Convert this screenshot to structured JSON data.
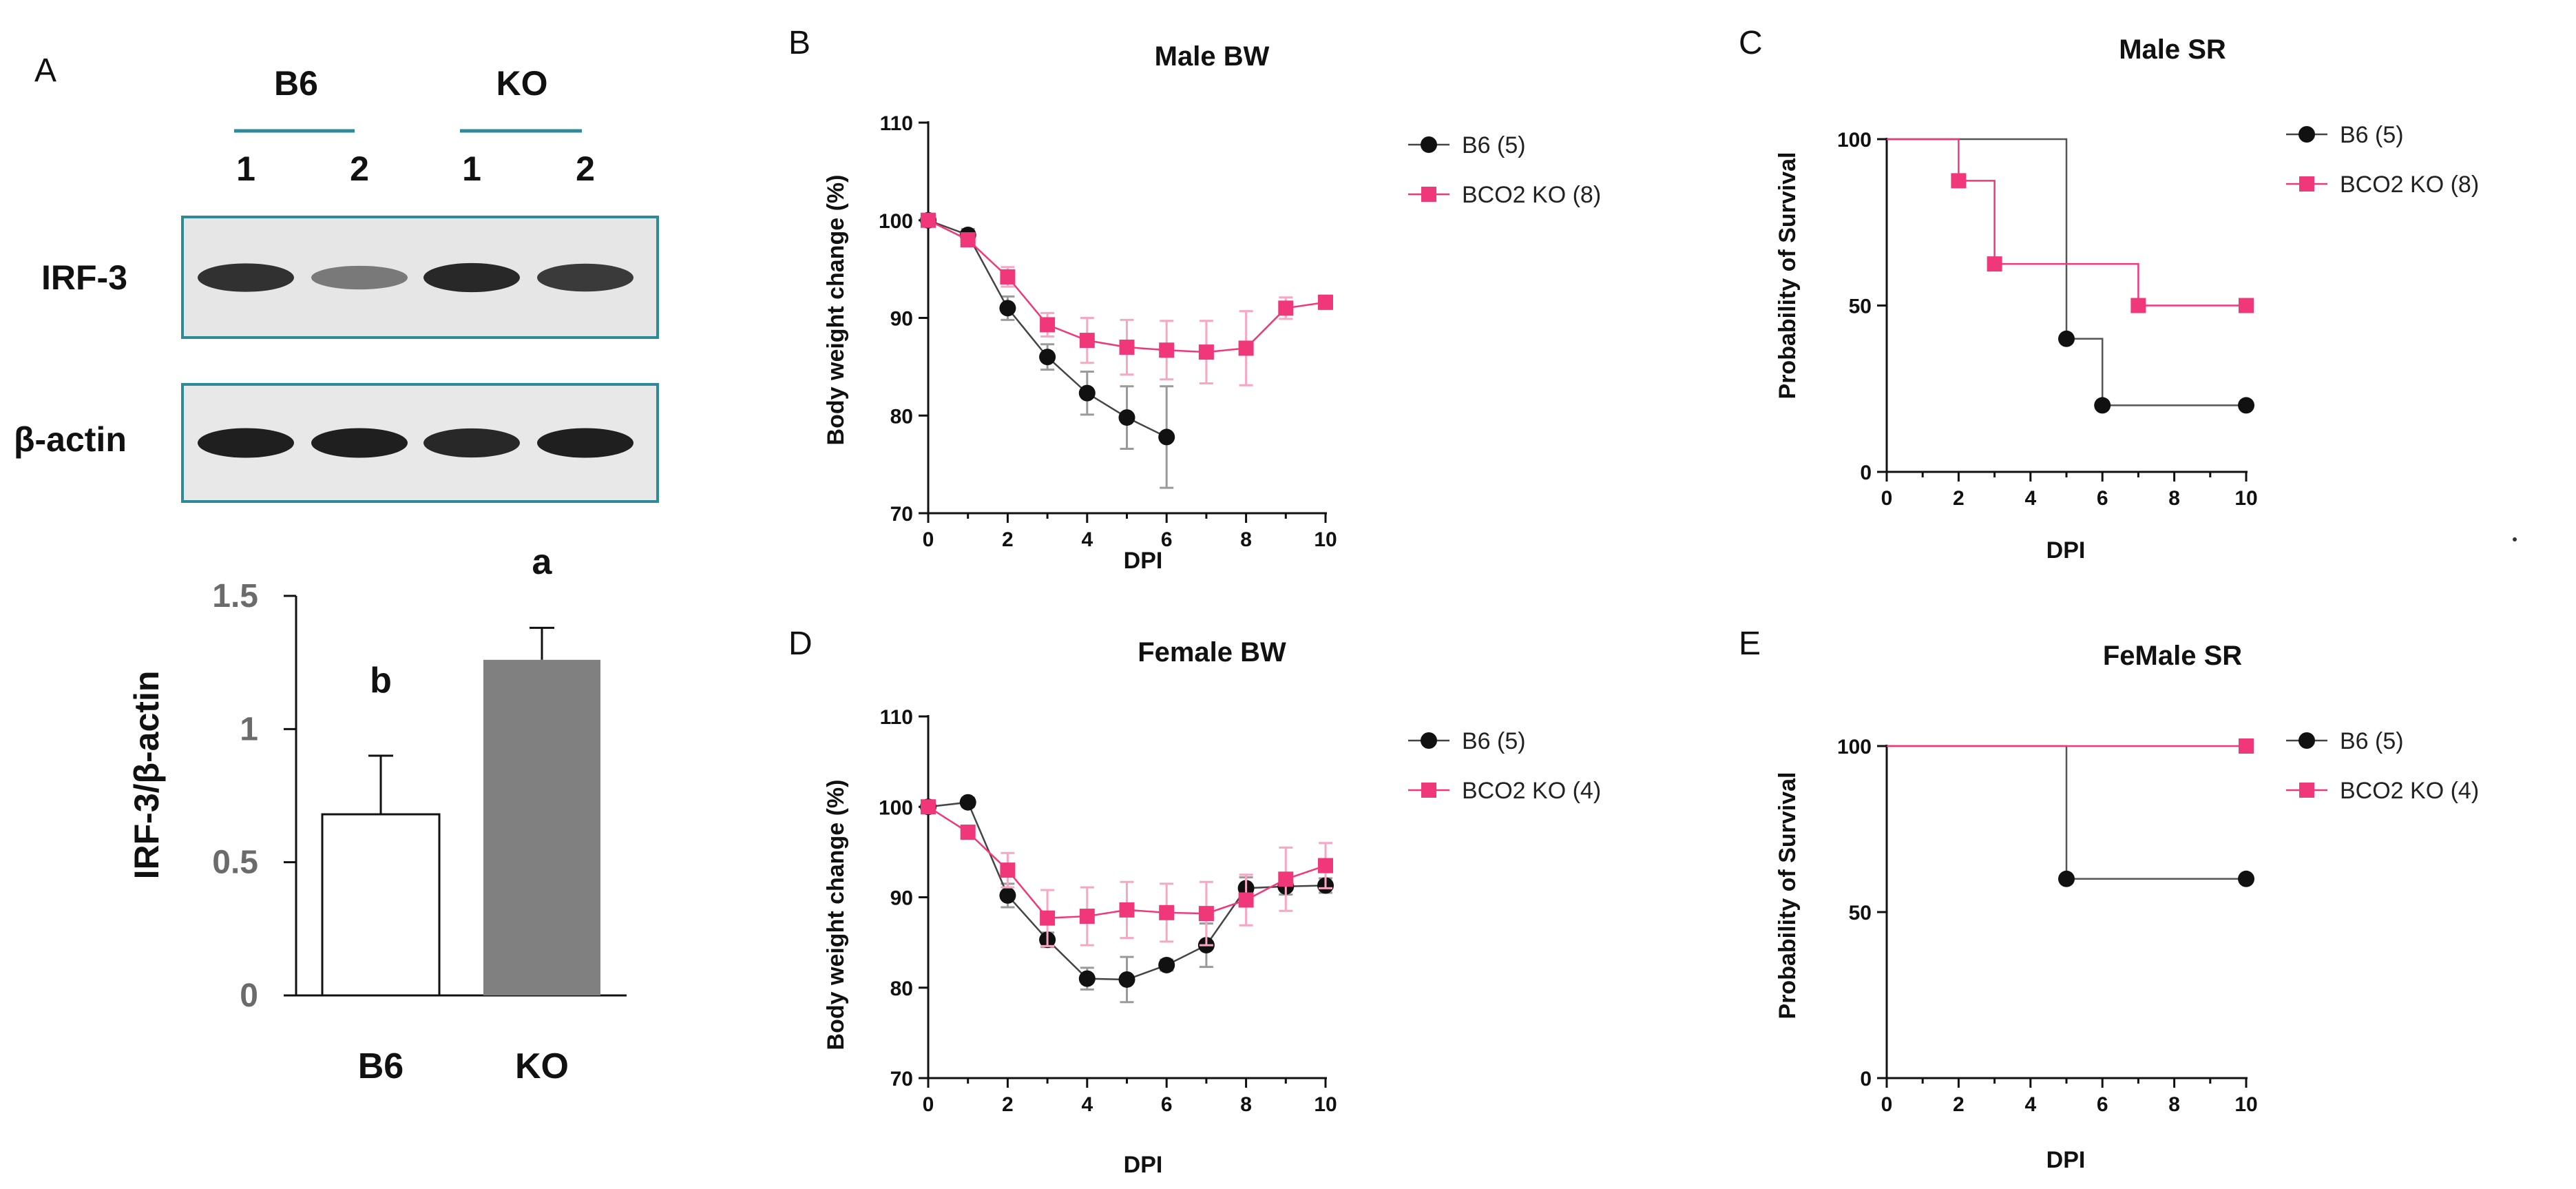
{
  "colors": {
    "b6": "#111111",
    "ko": "#f0377a",
    "ko_error": "#f7a6c3",
    "b6_error": "#9a9a9a",
    "blot_frame": "#2e8a98",
    "group_line": "#2e8a98",
    "ko_bar": "#808080"
  },
  "panel_a": {
    "letter": "A",
    "groups": [
      {
        "label": "B6",
        "lanes": [
          "1",
          "2"
        ]
      },
      {
        "label": "KO",
        "lanes": [
          "1",
          "2"
        ]
      }
    ],
    "blots": [
      {
        "label": "IRF-3",
        "band_intensity": [
          0.85,
          0.45,
          0.9,
          0.8
        ]
      },
      {
        "label": "β-actin",
        "band_intensity": [
          0.95,
          0.95,
          0.9,
          0.95
        ]
      }
    ]
  },
  "chart_data": [
    {
      "id": "A-bar",
      "type": "bar",
      "categories": [
        "B6",
        "KO"
      ],
      "values": [
        0.68,
        1.26
      ],
      "errors": [
        0.22,
        0.12
      ],
      "significance": [
        "b",
        "a"
      ],
      "ylabel": "IRF-3/β-actin",
      "ylim": [
        0,
        1.5
      ],
      "yticks": [
        "0",
        "0.5",
        "1",
        "1.5"
      ]
    },
    {
      "id": "B",
      "letter": "B",
      "type": "line",
      "title": "Male BW",
      "xlabel": "DPI",
      "ylabel": "Body weight change (%)",
      "xlim": [
        0,
        10
      ],
      "ylim": [
        70,
        110
      ],
      "xticks": [
        "0",
        "2",
        "4",
        "6",
        "8",
        "10"
      ],
      "yticks": [
        "70",
        "80",
        "90",
        "100",
        "110"
      ],
      "series": [
        {
          "name": "B6 (5)",
          "x": [
            0,
            1,
            2,
            3,
            4,
            5,
            6
          ],
          "values": [
            100,
            98.5,
            91,
            86,
            82.3,
            79.8,
            77.8
          ],
          "errors": [
            0.4,
            0.6,
            1.2,
            1.3,
            2.2,
            3.2,
            5.2
          ]
        },
        {
          "name": "BCO2 KO (8)",
          "x": [
            0,
            1,
            2,
            3,
            4,
            5,
            6,
            7,
            8,
            9,
            10
          ],
          "values": [
            100,
            98,
            94.2,
            89.3,
            87.7,
            87,
            86.7,
            86.5,
            86.9,
            91,
            91.6
          ],
          "errors": [
            0.4,
            0.6,
            1,
            1.2,
            2.3,
            2.8,
            3,
            3.2,
            3.8,
            1.1,
            0.7
          ]
        }
      ]
    },
    {
      "id": "C",
      "letter": "C",
      "type": "survival-step",
      "title": "Male SR",
      "xlabel": "DPI",
      "ylabel": "Probability of Survival",
      "xlim": [
        0,
        10
      ],
      "ylim": [
        0,
        100
      ],
      "xticks": [
        "0",
        "2",
        "4",
        "6",
        "8",
        "10"
      ],
      "yticks": [
        "0",
        "50",
        "100"
      ],
      "series": [
        {
          "name": "B6 (5)",
          "x": [
            0,
            5,
            6,
            10
          ],
          "values": [
            100,
            40,
            20,
            20
          ],
          "marker_x": [
            5,
            6,
            10
          ]
        },
        {
          "name": "BCO2 KO (8)",
          "x": [
            0,
            2,
            3,
            7,
            10
          ],
          "values": [
            100,
            87.5,
            62.5,
            50,
            50
          ],
          "marker_x": [
            2,
            3,
            7,
            10
          ]
        }
      ]
    },
    {
      "id": "D",
      "letter": "D",
      "type": "line",
      "title": "Female BW",
      "xlabel": "DPI",
      "ylabel": "Body weight change (%)",
      "xlim": [
        0,
        10
      ],
      "ylim": [
        70,
        110
      ],
      "xticks": [
        "0",
        "2",
        "4",
        "6",
        "8",
        "10"
      ],
      "yticks": [
        "70",
        "80",
        "90",
        "100",
        "110"
      ],
      "series": [
        {
          "name": "B6 (5)",
          "x": [
            0,
            1,
            2,
            3,
            4,
            5,
            6,
            7,
            8,
            9,
            10
          ],
          "values": [
            100,
            100.5,
            90.2,
            85.3,
            81,
            80.9,
            82.5,
            84.7,
            91,
            91.2,
            91.3
          ],
          "errors": [
            0.4,
            0.5,
            1.3,
            0.8,
            1.2,
            2.5,
            0.6,
            2.4,
            1.2,
            0.9,
            0.8
          ]
        },
        {
          "name": "BCO2 KO (4)",
          "x": [
            0,
            1,
            2,
            3,
            4,
            5,
            6,
            7,
            8,
            9,
            10
          ],
          "values": [
            100,
            97.2,
            93,
            87.7,
            87.9,
            88.6,
            88.3,
            88.2,
            89.7,
            92,
            93.5
          ],
          "errors": [
            0.4,
            0.6,
            1.9,
            3.1,
            3.2,
            3.1,
            3.2,
            3.5,
            2.8,
            3.5,
            2.5
          ]
        }
      ]
    },
    {
      "id": "E",
      "letter": "E",
      "type": "survival-step",
      "title": "FeMale SR",
      "xlabel": "DPI",
      "ylabel": "Probability of Survival",
      "xlim": [
        0,
        10
      ],
      "ylim": [
        0,
        100
      ],
      "xticks": [
        "0",
        "2",
        "4",
        "6",
        "8",
        "10"
      ],
      "yticks": [
        "0",
        "50",
        "100"
      ],
      "series": [
        {
          "name": "B6 (5)",
          "x": [
            0,
            5,
            10
          ],
          "values": [
            100,
            60,
            60
          ],
          "marker_x": [
            5,
            10
          ]
        },
        {
          "name": "BCO2 KO (4)",
          "x": [
            0,
            10
          ],
          "values": [
            100,
            100
          ],
          "marker_x": [
            10
          ]
        }
      ]
    }
  ]
}
